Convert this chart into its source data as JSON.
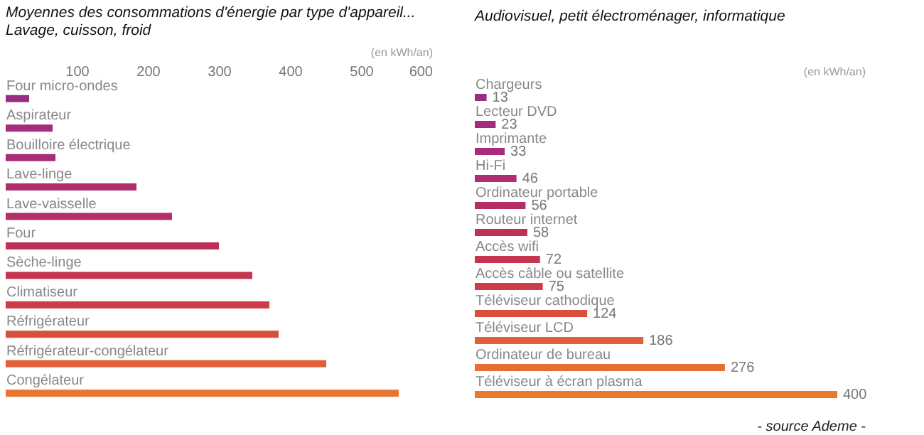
{
  "chart_data": [
    {
      "type": "bar",
      "orientation": "horizontal",
      "title": "Moyennes des consommations d'énergie par type d'appareil...",
      "subtitle": "Lavage, cuisson, froid",
      "xlabel": "(en kWh/an)",
      "categories": [
        "Four micro-ondes",
        "Aspirateur",
        "Bouilloire électrique",
        "Lave-linge",
        "Lave-vaisselle",
        "Four",
        "Sèche-linge",
        "Climatiseur",
        "Réfrigérateur",
        "Réfrigérateur-congélateur",
        "Congélateur"
      ],
      "values": [
        33,
        66,
        70,
        184,
        234,
        300,
        347,
        371,
        384,
        451,
        553
      ],
      "colors": [
        "#9b2c84",
        "#a42d7e",
        "#a82c7a",
        "#b02d6e",
        "#b62e66",
        "#bd3058",
        "#c53550",
        "#cc3d48",
        "#d8503c",
        "#e0603a",
        "#e87530"
      ],
      "xlim": [
        0,
        600
      ],
      "xticks": [
        100,
        200,
        300,
        400,
        500,
        600
      ]
    },
    {
      "type": "bar",
      "orientation": "horizontal",
      "title": "Audiovisuel, petit électroménager, informatique",
      "annotations": [
        "(en kWh/an)",
        "- source Ademe -"
      ],
      "categories": [
        "Chargeurs",
        "Lecteur DVD",
        "Imprimante",
        "Hi-Fi",
        "Ordinateur portable",
        "Routeur internet",
        "Accès wifi",
        "Accès câble ou satellite",
        "Téléviseur cathodique",
        "Téléviseur LCD",
        "Ordinateur de bureau",
        "Téléviseur à écran plasma"
      ],
      "values": [
        13,
        23,
        33,
        46,
        56,
        58,
        72,
        75,
        124,
        186,
        276,
        400
      ],
      "colors": [
        "#9b2c84",
        "#a22c80",
        "#a82c7a",
        "#b02d70",
        "#b62e66",
        "#bd3058",
        "#c53550",
        "#cc3d48",
        "#d8503c",
        "#e0603a",
        "#e66e33",
        "#e87a2a"
      ],
      "data_labels": true
    }
  ]
}
